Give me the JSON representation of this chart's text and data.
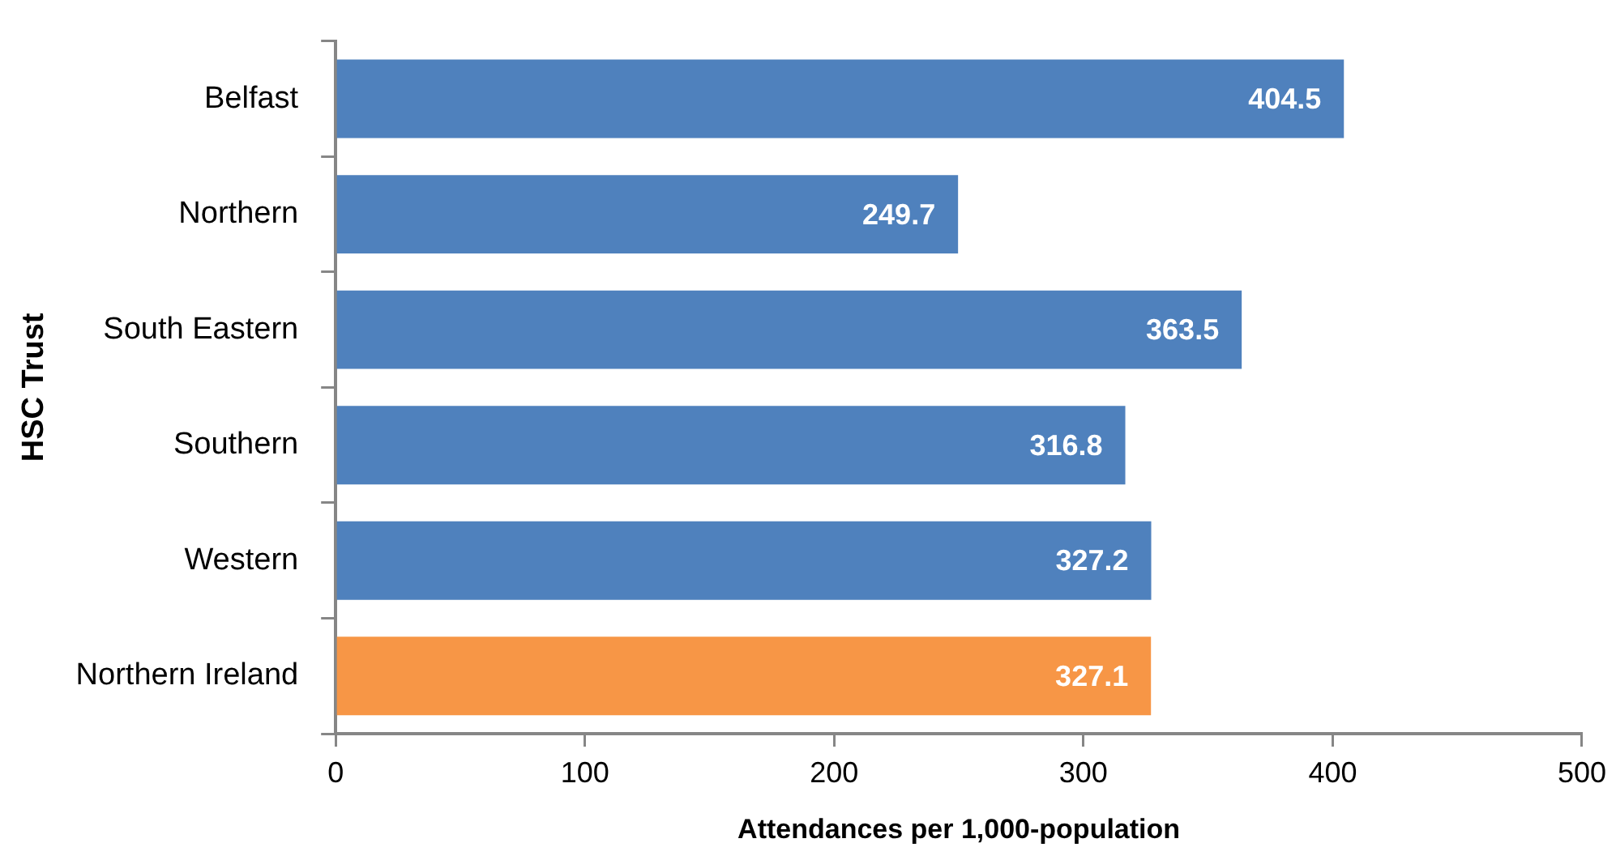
{
  "chart_data": {
    "type": "bar",
    "orientation": "horizontal",
    "categories": [
      "Belfast",
      "Northern",
      "South Eastern",
      "Southern",
      "Western",
      "Northern Ireland"
    ],
    "values": [
      404.5,
      249.7,
      363.5,
      316.8,
      327.2,
      327.1
    ],
    "colors": [
      "#4f81bd",
      "#4f81bd",
      "#4f81bd",
      "#4f81bd",
      "#4f81bd",
      "#f79646"
    ],
    "xlabel": "Attendances per 1,000-population",
    "ylabel": "HSC Trust",
    "xlim": [
      0,
      500
    ],
    "xticks": [
      0,
      100,
      200,
      300,
      400,
      500
    ],
    "grid": false,
    "data_labels": true
  }
}
